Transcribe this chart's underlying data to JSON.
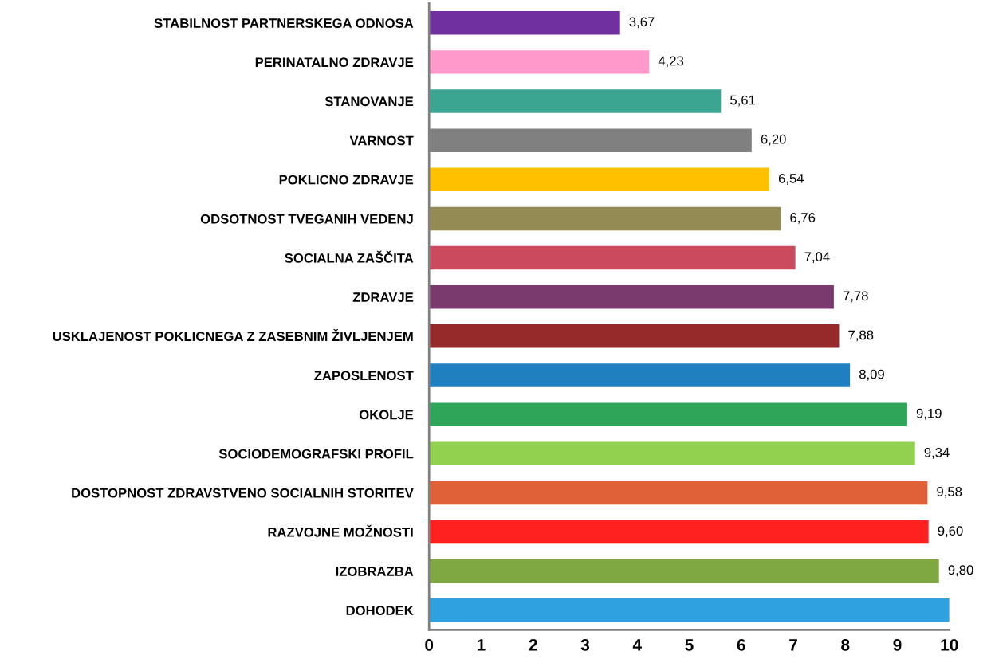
{
  "chart_data": {
    "type": "bar",
    "orientation": "horizontal",
    "categories": [
      "STABILNOST PARTNERSKEGA ODNOSA",
      "PERINATALNO ZDRAVJE",
      "STANOVANJE",
      "VARNOST",
      "POKLICNO ZDRAVJE",
      "ODSOTNOST TVEGANIH VEDENJ",
      "SOCIALNA ZAŠČITA",
      "ZDRAVJE",
      "USKLAJENOST POKLICNEGA Z ZASEBNIM ŽIVLJENJEM",
      "ZAPOSLENOST",
      "OKOLJE",
      "SOCIODEMOGRAFSKI PROFIL",
      "DOSTOPNOST ZDRAVSTVENO SOCIALNIH STORITEV",
      "RAZVOJNE MOŽNOSTI",
      "IZOBRAZBA",
      "DOHODEK"
    ],
    "values": [
      3.67,
      4.23,
      5.61,
      6.2,
      6.54,
      6.76,
      7.04,
      7.78,
      7.88,
      8.09,
      9.19,
      9.34,
      9.58,
      9.6,
      9.8,
      10.0
    ],
    "value_labels": [
      "3,67",
      "4,23",
      "5,61",
      "6,20",
      "6,54",
      "6,76",
      "7,04",
      "7,78",
      "7,88",
      "8,09",
      "9,19",
      "9,34",
      "9,58",
      "9,60",
      "9,80",
      null
    ],
    "colors": [
      "#7030a0",
      "#ff99cc",
      "#3ca592",
      "#808080",
      "#ffc000",
      "#948a54",
      "#cc4a5e",
      "#7a3a6e",
      "#962a2a",
      "#1f7fbf",
      "#2fa55a",
      "#92d050",
      "#e06038",
      "#ff2020",
      "#7fa842",
      "#2fa0e0"
    ],
    "xlim": [
      0,
      10
    ],
    "xticks": [
      0,
      1,
      2,
      3,
      4,
      5,
      6,
      7,
      8,
      9,
      10
    ],
    "grid": false,
    "legend": false
  }
}
